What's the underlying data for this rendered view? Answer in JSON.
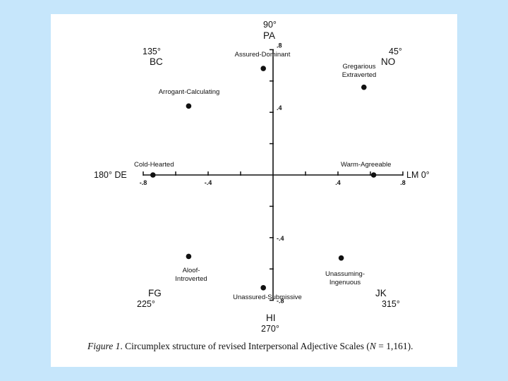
{
  "chart_data": {
    "type": "scatter",
    "xlim": [
      -0.8,
      0.8
    ],
    "ylim": [
      -0.8,
      0.8
    ],
    "x_ticks": [
      "-.8",
      "-.4",
      ".4",
      ".8"
    ],
    "y_ticks": [
      ".8",
      ".4",
      "-.4",
      "-.8"
    ],
    "axis_labels": {
      "right": "LM 0°",
      "left": "180° DE",
      "top_angle": "90°",
      "top_code": "PA",
      "bottom_code": "HI",
      "bottom_angle": "270°",
      "ne_angle": "45°",
      "ne_code": "NO",
      "nw_angle": "135°",
      "nw_code": "BC",
      "sw_code": "FG",
      "sw_angle": "225°",
      "se_code": "JK",
      "se_angle": "315°"
    },
    "points": [
      {
        "label": "Assured-Dominant",
        "x": -0.06,
        "y": 0.68
      },
      {
        "label": "Gregarious Extraverted",
        "x": 0.56,
        "y": 0.56
      },
      {
        "label": "Arrogant-Calculating",
        "x": -0.52,
        "y": 0.44
      },
      {
        "label": "Cold-Hearted",
        "x": -0.74,
        "y": 0.0
      },
      {
        "label": "Warm-Agreeable",
        "x": 0.62,
        "y": 0.0
      },
      {
        "label": "Aloof-Introverted",
        "x": -0.52,
        "y": -0.52
      },
      {
        "label": "Unassuming-Ingenuous",
        "x": 0.42,
        "y": -0.53
      },
      {
        "label": "Unassured-Submissive",
        "x": -0.06,
        "y": -0.72
      }
    ]
  },
  "caption": {
    "figure_label": "Figure 1",
    "text": ". Circumplex structure of revised Interpersonal Adjective Scales (",
    "n_label": "N",
    "n_value": " = 1,161)."
  }
}
